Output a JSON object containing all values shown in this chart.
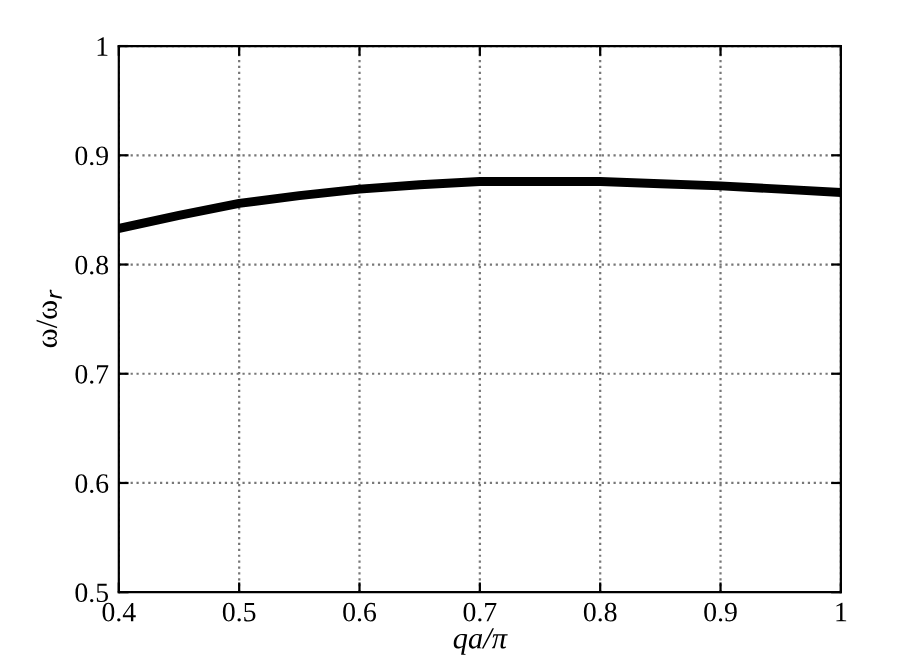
{
  "chart_data": {
    "type": "line",
    "xlabel": "qa/π",
    "ylabel": "ω/ω$_{r}$",
    "x": [
      0.4,
      0.45,
      0.5,
      0.55,
      0.6,
      0.65,
      0.7,
      0.75,
      0.8,
      0.85,
      0.9,
      0.95,
      1.0
    ],
    "series": [
      {
        "color": "#000000",
        "values": [
          0.833,
          0.845,
          0.856,
          0.863,
          0.869,
          0.873,
          0.876,
          0.876,
          0.876,
          0.874,
          0.872,
          0.869,
          0.866
        ]
      }
    ],
    "xlim": [
      0.4,
      1
    ],
    "ylim": [
      0.5,
      1
    ],
    "xticks": [
      0.4,
      0.5,
      0.6,
      0.7,
      0.8,
      0.9,
      1
    ],
    "yticks": [
      0.5,
      0.6,
      0.7,
      0.8,
      0.9,
      1
    ],
    "grid": true,
    "line_style": "solid",
    "marker": "none"
  }
}
